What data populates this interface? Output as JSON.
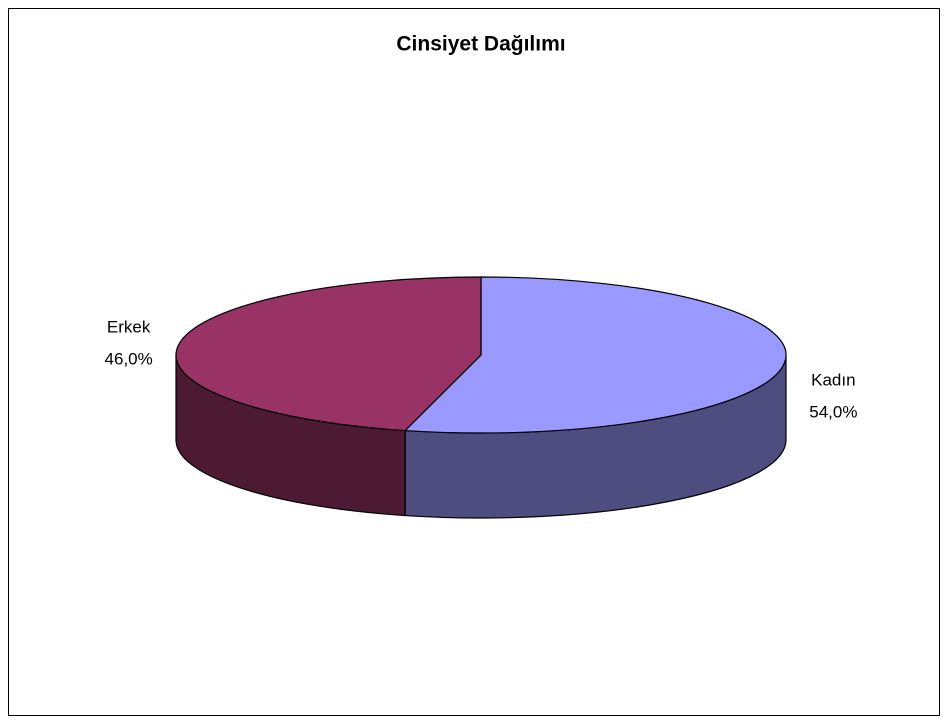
{
  "chart_data": {
    "type": "pie3d",
    "title": "Cinsiyet Dağılımı",
    "categories": [
      "Kadın",
      "Erkek"
    ],
    "values": [
      54,
      46
    ],
    "value_labels": [
      "54,0%",
      "46,0%"
    ],
    "colors": [
      "#9999ff",
      "#993366"
    ]
  }
}
